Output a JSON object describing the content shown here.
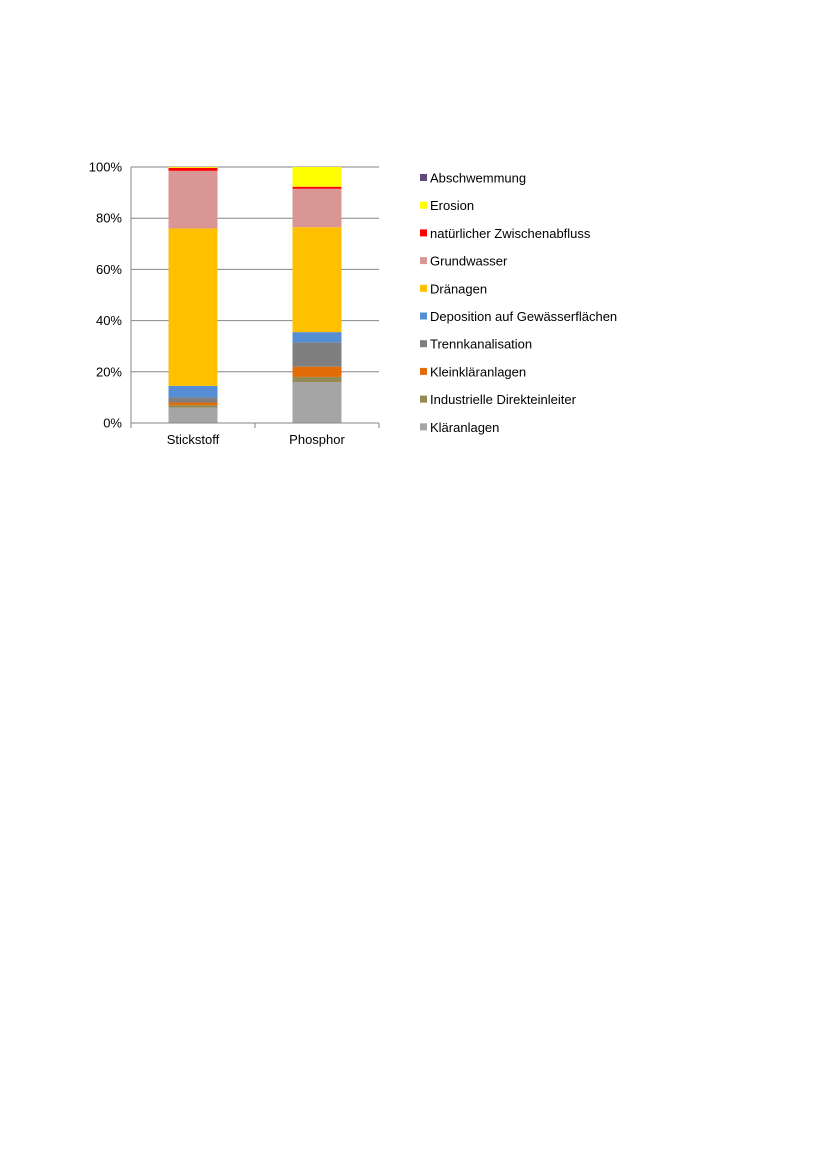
{
  "chart_data": {
    "type": "bar",
    "stacked": true,
    "percent_stacked": true,
    "categories": [
      "Stickstoff",
      "Phosphor"
    ],
    "ylim": [
      0,
      100
    ],
    "yticks": [
      "0%",
      "20%",
      "40%",
      "60%",
      "80%",
      "100%"
    ],
    "grid": true,
    "legend_position": "right",
    "legend_order": "reverse",
    "series": [
      {
        "name": "Kläranlagen",
        "color": "#a5a5a5",
        "values": [
          6,
          16
        ]
      },
      {
        "name": "Industrielle Direkteinleiter",
        "color": "#948a54",
        "values": [
          1,
          2
        ]
      },
      {
        "name": "Kleinkläranlagen",
        "color": "#e36c09",
        "values": [
          1,
          4
        ]
      },
      {
        "name": "Trennkanalisation",
        "color": "#7f7f7f",
        "values": [
          2,
          9.5
        ]
      },
      {
        "name": "Deposition auf Gewässerflächen",
        "color": "#558ed5",
        "values": [
          4.5,
          4
        ]
      },
      {
        "name": "Dränagen",
        "color": "#ffc000",
        "values": [
          61.5,
          41
        ]
      },
      {
        "name": "Grundwasser",
        "color": "#d99694",
        "values": [
          22.5,
          15
        ]
      },
      {
        "name": "natürlicher Zwischenabfluss",
        "color": "#ff0000",
        "values": [
          1.2,
          0.8
        ]
      },
      {
        "name": "Erosion",
        "color": "#ffff00",
        "values": [
          0.3,
          7.7
        ]
      },
      {
        "name": "Abschwemmung",
        "color": "#604a7b",
        "values": [
          0,
          0
        ]
      }
    ]
  }
}
